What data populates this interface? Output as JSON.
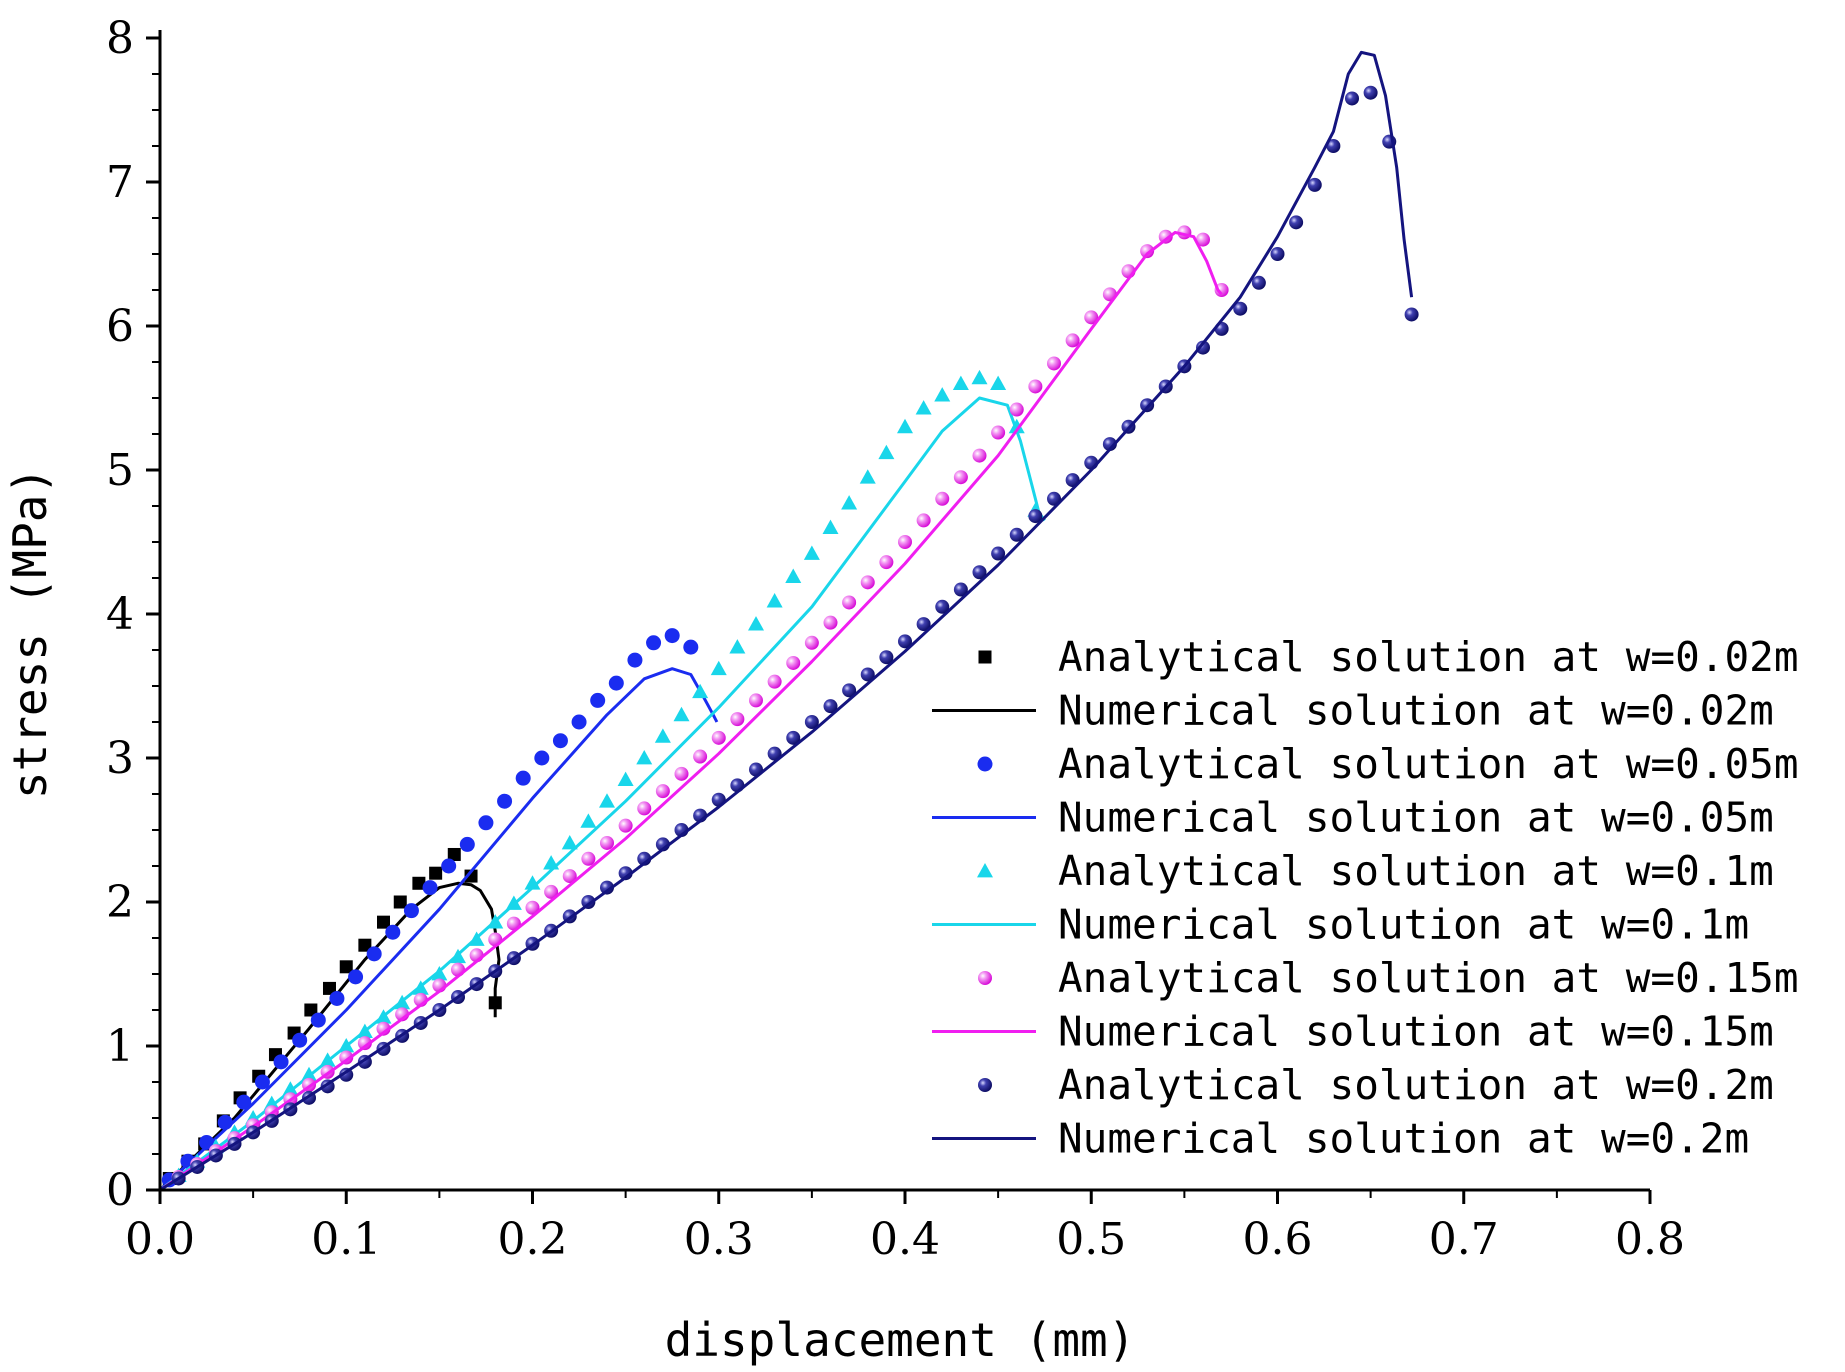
{
  "chart_data": {
    "type": "scatter+line",
    "xlabel": "displacement (mm)",
    "ylabel": "stress (MPa)",
    "xlim": [
      0,
      0.8
    ],
    "ylim": [
      0,
      8
    ],
    "xticks": [
      "0.0",
      "0.1",
      "0.2",
      "0.3",
      "0.4",
      "0.5",
      "0.6",
      "0.7",
      "0.8"
    ],
    "yticks": [
      "0",
      "1",
      "2",
      "3",
      "4",
      "5",
      "6",
      "7",
      "8"
    ],
    "legend_position": "bottom-right",
    "series": [
      {
        "name": "Analytical solution at w=0.02m",
        "kind": "markers",
        "marker": "square",
        "color": "#000000",
        "x": [
          0.005,
          0.015,
          0.024,
          0.034,
          0.043,
          0.053,
          0.062,
          0.072,
          0.081,
          0.091,
          0.1,
          0.11,
          0.12,
          0.129,
          0.139,
          0.148,
          0.158,
          0.167,
          0.18
        ],
        "y": [
          0.08,
          0.2,
          0.32,
          0.48,
          0.64,
          0.79,
          0.94,
          1.09,
          1.25,
          1.4,
          1.55,
          1.7,
          1.86,
          2.0,
          2.13,
          2.2,
          2.33,
          2.18,
          1.3
        ]
      },
      {
        "name": "Numerical solution at w=0.02m",
        "kind": "line",
        "color": "#000000",
        "x": [
          0,
          0.04,
          0.08,
          0.11,
          0.135,
          0.15,
          0.16,
          0.167,
          0.172,
          0.178,
          0.18,
          0.182,
          0.18,
          0.18
        ],
        "y": [
          0,
          0.5,
          1.12,
          1.6,
          1.95,
          2.1,
          2.13,
          2.12,
          2.08,
          1.95,
          1.8,
          1.6,
          1.4,
          1.2
        ]
      },
      {
        "name": "Analytical solution at w=0.05m",
        "kind": "markers",
        "marker": "circle",
        "color": "#1a2cf0",
        "x": [
          0.005,
          0.015,
          0.025,
          0.035,
          0.045,
          0.055,
          0.065,
          0.075,
          0.085,
          0.095,
          0.105,
          0.115,
          0.125,
          0.135,
          0.145,
          0.155,
          0.165,
          0.175,
          0.185,
          0.195,
          0.205,
          0.215,
          0.225,
          0.235,
          0.245,
          0.255,
          0.265,
          0.275,
          0.285
        ],
        "y": [
          0.07,
          0.2,
          0.33,
          0.47,
          0.61,
          0.75,
          0.89,
          1.04,
          1.18,
          1.33,
          1.48,
          1.64,
          1.79,
          1.94,
          2.1,
          2.25,
          2.4,
          2.55,
          2.7,
          2.86,
          3.0,
          3.12,
          3.25,
          3.4,
          3.52,
          3.68,
          3.8,
          3.85,
          3.77
        ]
      },
      {
        "name": "Numerical solution at w=0.05m",
        "kind": "line",
        "color": "#1a2cf0",
        "x": [
          0,
          0.05,
          0.1,
          0.15,
          0.2,
          0.24,
          0.26,
          0.275,
          0.285,
          0.292,
          0.297,
          0.299
        ],
        "y": [
          0,
          0.6,
          1.25,
          1.95,
          2.72,
          3.3,
          3.55,
          3.62,
          3.58,
          3.42,
          3.3,
          3.25
        ]
      },
      {
        "name": "Analytical solution at w=0.1m",
        "kind": "markers",
        "marker": "triangle",
        "color": "#19d6ea",
        "x": [
          0.01,
          0.02,
          0.03,
          0.04,
          0.05,
          0.06,
          0.07,
          0.08,
          0.09,
          0.1,
          0.11,
          0.12,
          0.13,
          0.14,
          0.15,
          0.16,
          0.17,
          0.18,
          0.19,
          0.2,
          0.21,
          0.22,
          0.23,
          0.24,
          0.25,
          0.26,
          0.27,
          0.28,
          0.29,
          0.3,
          0.31,
          0.32,
          0.33,
          0.34,
          0.35,
          0.36,
          0.37,
          0.38,
          0.39,
          0.4,
          0.41,
          0.42,
          0.43,
          0.44,
          0.45,
          0.46,
          0.47
        ],
        "y": [
          0.1,
          0.2,
          0.3,
          0.4,
          0.5,
          0.6,
          0.7,
          0.8,
          0.9,
          1.0,
          1.1,
          1.2,
          1.3,
          1.4,
          1.5,
          1.62,
          1.74,
          1.86,
          1.99,
          2.13,
          2.27,
          2.41,
          2.56,
          2.7,
          2.85,
          3.0,
          3.15,
          3.3,
          3.46,
          3.62,
          3.77,
          3.93,
          4.09,
          4.26,
          4.42,
          4.6,
          4.77,
          4.95,
          5.12,
          5.3,
          5.43,
          5.52,
          5.6,
          5.64,
          5.6,
          5.3,
          4.72
        ]
      },
      {
        "name": "Numerical solution at w=0.1m",
        "kind": "line",
        "color": "#19d6ea",
        "x": [
          0,
          0.05,
          0.1,
          0.15,
          0.2,
          0.25,
          0.3,
          0.35,
          0.4,
          0.42,
          0.44,
          0.455,
          0.462,
          0.468,
          0.472,
          0.475
        ],
        "y": [
          0,
          0.48,
          1.0,
          1.52,
          2.1,
          2.7,
          3.35,
          4.05,
          4.92,
          5.27,
          5.5,
          5.45,
          5.2,
          4.9,
          4.7,
          4.65
        ]
      },
      {
        "name": "Analytical solution at w=0.15m",
        "kind": "markers",
        "marker": "sphere",
        "color": "#f01ef0",
        "x": [
          0.01,
          0.02,
          0.03,
          0.04,
          0.05,
          0.06,
          0.07,
          0.08,
          0.09,
          0.1,
          0.11,
          0.12,
          0.13,
          0.14,
          0.15,
          0.16,
          0.17,
          0.18,
          0.19,
          0.2,
          0.21,
          0.22,
          0.23,
          0.24,
          0.25,
          0.26,
          0.27,
          0.28,
          0.29,
          0.3,
          0.31,
          0.32,
          0.33,
          0.34,
          0.35,
          0.36,
          0.37,
          0.38,
          0.39,
          0.4,
          0.41,
          0.42,
          0.43,
          0.44,
          0.45,
          0.46,
          0.47,
          0.48,
          0.49,
          0.5,
          0.51,
          0.52,
          0.53,
          0.54,
          0.55,
          0.56,
          0.57
        ],
        "y": [
          0.09,
          0.18,
          0.27,
          0.36,
          0.45,
          0.54,
          0.63,
          0.73,
          0.82,
          0.92,
          1.02,
          1.12,
          1.22,
          1.32,
          1.42,
          1.53,
          1.63,
          1.74,
          1.85,
          1.96,
          2.07,
          2.18,
          2.3,
          2.41,
          2.53,
          2.65,
          2.77,
          2.89,
          3.01,
          3.14,
          3.27,
          3.4,
          3.53,
          3.66,
          3.8,
          3.94,
          4.08,
          4.22,
          4.36,
          4.5,
          4.65,
          4.8,
          4.95,
          5.1,
          5.26,
          5.42,
          5.58,
          5.74,
          5.9,
          6.06,
          6.22,
          6.38,
          6.52,
          6.62,
          6.65,
          6.6,
          6.25
        ]
      },
      {
        "name": "Numerical solution at w=0.15m",
        "kind": "line",
        "color": "#f01ef0",
        "x": [
          0,
          0.05,
          0.1,
          0.15,
          0.2,
          0.25,
          0.3,
          0.35,
          0.4,
          0.45,
          0.5,
          0.53,
          0.545,
          0.555,
          0.562,
          0.568,
          0.57
        ],
        "y": [
          0,
          0.44,
          0.9,
          1.38,
          1.9,
          2.44,
          3.03,
          3.67,
          4.35,
          5.1,
          5.98,
          6.5,
          6.65,
          6.62,
          6.45,
          6.25,
          6.22
        ]
      },
      {
        "name": "Analytical solution at w=0.2m",
        "kind": "markers",
        "marker": "sphere",
        "color": "#14147f",
        "x": [
          0.01,
          0.02,
          0.03,
          0.04,
          0.05,
          0.06,
          0.07,
          0.08,
          0.09,
          0.1,
          0.11,
          0.12,
          0.13,
          0.14,
          0.15,
          0.16,
          0.17,
          0.18,
          0.19,
          0.2,
          0.21,
          0.22,
          0.23,
          0.24,
          0.25,
          0.26,
          0.27,
          0.28,
          0.29,
          0.3,
          0.31,
          0.32,
          0.33,
          0.34,
          0.35,
          0.36,
          0.37,
          0.38,
          0.39,
          0.4,
          0.41,
          0.42,
          0.43,
          0.44,
          0.45,
          0.46,
          0.47,
          0.48,
          0.49,
          0.5,
          0.51,
          0.52,
          0.53,
          0.54,
          0.55,
          0.56,
          0.57,
          0.58,
          0.59,
          0.6,
          0.61,
          0.62,
          0.63,
          0.64,
          0.65,
          0.66,
          0.672
        ],
        "y": [
          0.08,
          0.16,
          0.24,
          0.32,
          0.4,
          0.48,
          0.56,
          0.64,
          0.72,
          0.8,
          0.89,
          0.98,
          1.07,
          1.16,
          1.25,
          1.34,
          1.43,
          1.52,
          1.61,
          1.71,
          1.8,
          1.9,
          2.0,
          2.1,
          2.2,
          2.3,
          2.4,
          2.5,
          2.6,
          2.71,
          2.81,
          2.92,
          3.03,
          3.14,
          3.25,
          3.36,
          3.47,
          3.58,
          3.7,
          3.81,
          3.93,
          4.05,
          4.17,
          4.29,
          4.42,
          4.55,
          4.68,
          4.8,
          4.93,
          5.05,
          5.18,
          5.3,
          5.45,
          5.58,
          5.72,
          5.85,
          5.98,
          6.12,
          6.3,
          6.5,
          6.72,
          6.98,
          7.25,
          7.58,
          7.62,
          7.28,
          6.08
        ]
      },
      {
        "name": "Numerical solution at w=0.2m",
        "kind": "line",
        "color": "#14147f",
        "x": [
          0,
          0.05,
          0.1,
          0.15,
          0.2,
          0.25,
          0.3,
          0.35,
          0.4,
          0.45,
          0.5,
          0.55,
          0.58,
          0.6,
          0.62,
          0.63,
          0.638,
          0.645,
          0.652,
          0.658,
          0.664,
          0.668,
          0.672
        ],
        "y": [
          0,
          0.4,
          0.82,
          1.25,
          1.7,
          2.17,
          2.66,
          3.18,
          3.74,
          4.34,
          5.0,
          5.72,
          6.2,
          6.62,
          7.1,
          7.35,
          7.75,
          7.9,
          7.88,
          7.6,
          7.1,
          6.6,
          6.2
        ]
      }
    ]
  }
}
